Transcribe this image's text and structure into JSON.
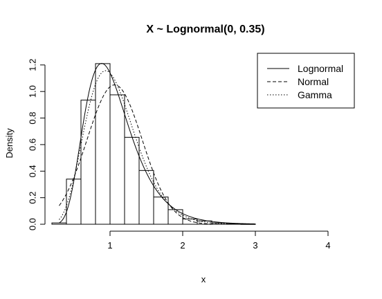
{
  "chart_data": {
    "type": "histogram",
    "title": "X ~ Lognormal(0, 0.35)",
    "xlabel": "x",
    "ylabel": "Density",
    "xlim": [
      0.2,
      4.2
    ],
    "ylim": [
      0,
      1.22
    ],
    "x_ticks": [
      "1",
      "2",
      "3",
      "4"
    ],
    "y_ticks": [
      "0.0",
      "0.2",
      "0.4",
      "0.6",
      "0.8",
      "1.0",
      "1.2"
    ],
    "bins": [
      {
        "x0": 0.2,
        "x1": 0.4,
        "density": 0.01
      },
      {
        "x0": 0.4,
        "x1": 0.6,
        "density": 0.34
      },
      {
        "x0": 0.6,
        "x1": 0.8,
        "density": 0.935
      },
      {
        "x0": 0.8,
        "x1": 1.0,
        "density": 1.21
      },
      {
        "x0": 1.0,
        "x1": 1.2,
        "density": 0.975
      },
      {
        "x0": 1.2,
        "x1": 1.4,
        "density": 0.655
      },
      {
        "x0": 1.4,
        "x1": 1.6,
        "density": 0.405
      },
      {
        "x0": 1.6,
        "x1": 1.8,
        "density": 0.205
      },
      {
        "x0": 1.8,
        "x1": 2.0,
        "density": 0.11
      },
      {
        "x0": 2.0,
        "x1": 2.2,
        "density": 0.04
      },
      {
        "x0": 2.2,
        "x1": 2.4,
        "density": 0.025
      },
      {
        "x0": 2.4,
        "x1": 2.6,
        "density": 0.01
      },
      {
        "x0": 2.6,
        "x1": 2.8,
        "density": 0.004
      },
      {
        "x0": 2.8,
        "x1": 3.0,
        "density": 0.002
      }
    ],
    "series": [
      {
        "name": "Lognormal",
        "line_style": "solid",
        "distribution": "lognormal",
        "params": {
          "meanlog": 0,
          "sdlog": 0.35
        },
        "x_range": [
          0.3,
          3.0
        ]
      },
      {
        "name": "Normal",
        "line_style": "dashed",
        "distribution": "normal",
        "params": {
          "mean": 1.063,
          "sd": 0.38
        },
        "x_range": [
          0.3,
          3.0
        ]
      },
      {
        "name": "Gamma",
        "line_style": "dotted",
        "distribution": "gamma",
        "params": {
          "shape": 8.58,
          "rate": 8.07
        },
        "x_range": [
          0.3,
          3.0
        ]
      }
    ],
    "legend_position": "top-right",
    "grid": false
  }
}
